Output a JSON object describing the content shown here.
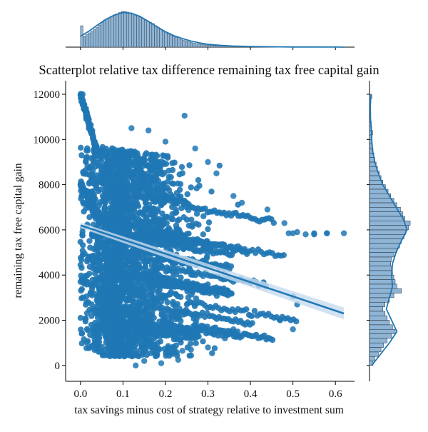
{
  "chart_data": {
    "type": "scatter",
    "title": "Scatterplot relative tax difference remaining tax free capital gain",
    "xlabel": "tax savings minus cost of strategy relative to investment sum",
    "ylabel": "remaining tax free capital gain",
    "xlim": [
      -0.035,
      0.645
    ],
    "ylim": [
      -700,
      12600
    ],
    "x_ticks": [
      "0.0",
      "0.1",
      "0.2",
      "0.3",
      "0.4",
      "0.5",
      "0.6"
    ],
    "x_tick_values": [
      0.0,
      0.1,
      0.2,
      0.3,
      0.4,
      0.5,
      0.6
    ],
    "y_ticks": [
      "0",
      "2000",
      "4000",
      "6000",
      "8000",
      "10000",
      "12000"
    ],
    "y_tick_values": [
      0,
      2000,
      4000,
      6000,
      8000,
      10000,
      12000
    ],
    "grid": false,
    "colors": {
      "points": "#1f77b4",
      "line": "#1f77b4",
      "ci_band": "#c6dbef",
      "hist_fill": "#8fb5d6",
      "hist_edge": "#1f2a35"
    },
    "regression": {
      "x": [
        0.0,
        0.62
      ],
      "y": [
        6200,
        2300
      ],
      "ci_halfwidth": [
        120,
        260
      ]
    },
    "outlier_points": {
      "x": [
        0.005,
        0.245,
        0.12,
        0.16,
        0.2,
        0.27,
        0.3,
        0.32,
        0.36,
        0.38,
        0.44,
        0.48,
        0.49,
        0.5,
        0.51,
        0.55,
        0.58,
        0.62,
        0.53,
        0.55,
        0.58,
        0.5,
        0.51,
        0.5,
        0.47,
        0.4,
        0.36,
        0.34,
        0.3,
        0.26,
        0.24,
        0.22,
        0.13,
        0.09,
        0.08,
        0.15,
        0.19,
        0.23,
        0.37
      ],
      "y": [
        12000,
        11050,
        10500,
        10400,
        9900,
        9600,
        9000,
        8500,
        7500,
        7200,
        6900,
        6300,
        5850,
        5850,
        5900,
        5850,
        5850,
        5850,
        5800,
        5800,
        5850,
        3050,
        2700,
        1600,
        2000,
        2200,
        1600,
        1200,
        800,
        700,
        650,
        600,
        0,
        600,
        500,
        200,
        100,
        250,
        1500
      ]
    },
    "x_marginal": {
      "bins": [
        0.0,
        0.006,
        0.012,
        0.018,
        0.024,
        0.03,
        0.036,
        0.042,
        0.048,
        0.054,
        0.06,
        0.066,
        0.072,
        0.078,
        0.084,
        0.09,
        0.096,
        0.102,
        0.108,
        0.114,
        0.12,
        0.126,
        0.132,
        0.138,
        0.144,
        0.15,
        0.156,
        0.162,
        0.168,
        0.174,
        0.18,
        0.186,
        0.192,
        0.198,
        0.204,
        0.21,
        0.216,
        0.222,
        0.228,
        0.234,
        0.24,
        0.246,
        0.252,
        0.258,
        0.264,
        0.27,
        0.276,
        0.282,
        0.288,
        0.294,
        0.3,
        0.306,
        0.312,
        0.318,
        0.324,
        0.33,
        0.336,
        0.342,
        0.348,
        0.354,
        0.36,
        0.366,
        0.372,
        0.378,
        0.384,
        0.39,
        0.396,
        0.402,
        0.408,
        0.414,
        0.42,
        0.426,
        0.432,
        0.438,
        0.444,
        0.45,
        0.456,
        0.462,
        0.468,
        0.474,
        0.48,
        0.486,
        0.492,
        0.498,
        0.504,
        0.51,
        0.516,
        0.522,
        0.528,
        0.534,
        0.54,
        0.546,
        0.552,
        0.558,
        0.564,
        0.57,
        0.576,
        0.582,
        0.588,
        0.594,
        0.6,
        0.606,
        0.612,
        0.618
      ],
      "counts": [
        0.6,
        0.3,
        0.35,
        0.4,
        0.45,
        0.5,
        0.55,
        0.62,
        0.7,
        0.76,
        0.8,
        0.82,
        0.86,
        0.9,
        0.93,
        0.97,
        1.0,
        1.0,
        0.98,
        0.96,
        0.93,
        0.9,
        0.87,
        0.84,
        0.8,
        0.76,
        0.72,
        0.69,
        0.66,
        0.6,
        0.55,
        0.5,
        0.45,
        0.42,
        0.38,
        0.34,
        0.3,
        0.27,
        0.24,
        0.21,
        0.19,
        0.17,
        0.15,
        0.13,
        0.11,
        0.1,
        0.09,
        0.08,
        0.07,
        0.06,
        0.055,
        0.05,
        0.045,
        0.04,
        0.035,
        0.032,
        0.03,
        0.027,
        0.025,
        0.022,
        0.02,
        0.018,
        0.016,
        0.015,
        0.013,
        0.012,
        0.011,
        0.01,
        0.009,
        0.008,
        0.007,
        0.006,
        0.006,
        0.005,
        0.005,
        0.004,
        0.004,
        0.004,
        0.003,
        0.003,
        0.003,
        0.003,
        0.002,
        0.002,
        0.002,
        0.002,
        0.002,
        0.002,
        0.001,
        0.001,
        0.001,
        0.001,
        0.001,
        0.001,
        0.001,
        0.001,
        0.001,
        0.001,
        0.001,
        0.001,
        0.001,
        0.001,
        0.001
      ],
      "kde_x": [
        0.0,
        0.02,
        0.04,
        0.06,
        0.08,
        0.1,
        0.12,
        0.14,
        0.16,
        0.18,
        0.2,
        0.22,
        0.24,
        0.26,
        0.28,
        0.3,
        0.33,
        0.36,
        0.4,
        0.45,
        0.5,
        0.55,
        0.6,
        0.62
      ],
      "kde_y": [
        0.3,
        0.45,
        0.62,
        0.78,
        0.9,
        0.97,
        0.95,
        0.86,
        0.72,
        0.57,
        0.43,
        0.32,
        0.24,
        0.17,
        0.12,
        0.08,
        0.05,
        0.03,
        0.018,
        0.01,
        0.005,
        0.003,
        0.002,
        0.001
      ]
    },
    "y_marginal": {
      "bins": [
        0,
        200,
        400,
        600,
        800,
        1000,
        1200,
        1400,
        1600,
        1800,
        2000,
        2200,
        2400,
        2600,
        2800,
        3000,
        3200,
        3400,
        3600,
        3800,
        4000,
        4200,
        4400,
        4600,
        4800,
        5000,
        5200,
        5400,
        5600,
        5800,
        6000,
        6200,
        6400,
        6600,
        6800,
        7000,
        7200,
        7400,
        7600,
        7800,
        8000,
        8200,
        8400,
        8600,
        8800,
        9000,
        9200,
        9400,
        9600,
        9800,
        10000,
        10200,
        10400,
        10600,
        10800,
        11000,
        11200,
        11400,
        11600,
        11800
      ],
      "counts": [
        0.08,
        0.12,
        0.2,
        0.26,
        0.32,
        0.4,
        0.5,
        0.58,
        0.52,
        0.45,
        0.4,
        0.35,
        0.3,
        0.35,
        0.45,
        0.55,
        0.72,
        0.62,
        0.58,
        0.55,
        0.52,
        0.5,
        0.48,
        0.5,
        0.55,
        0.62,
        0.68,
        0.72,
        0.78,
        0.82,
        0.88,
        0.92,
        0.8,
        0.75,
        0.7,
        0.62,
        0.55,
        0.48,
        0.42,
        0.36,
        0.3,
        0.26,
        0.22,
        0.18,
        0.15,
        0.12,
        0.1,
        0.08,
        0.06,
        0.05,
        0.06,
        0.07,
        0.05,
        0.04,
        0.03,
        0.03,
        0.02,
        0.02,
        0.03,
        0.05
      ],
      "kde_y": [
        0,
        500,
        1000,
        1500,
        2000,
        2500,
        3000,
        3500,
        4000,
        4500,
        5000,
        5500,
        6000,
        6500,
        7000,
        7500,
        8000,
        8500,
        9000,
        9500,
        10000,
        10500,
        11000,
        11500,
        12000
      ],
      "kde_x": [
        0.05,
        0.25,
        0.45,
        0.62,
        0.5,
        0.38,
        0.45,
        0.52,
        0.5,
        0.52,
        0.6,
        0.72,
        0.85,
        0.76,
        0.6,
        0.45,
        0.3,
        0.2,
        0.12,
        0.07,
        0.05,
        0.04,
        0.02,
        0.02,
        0.03
      ]
    }
  }
}
